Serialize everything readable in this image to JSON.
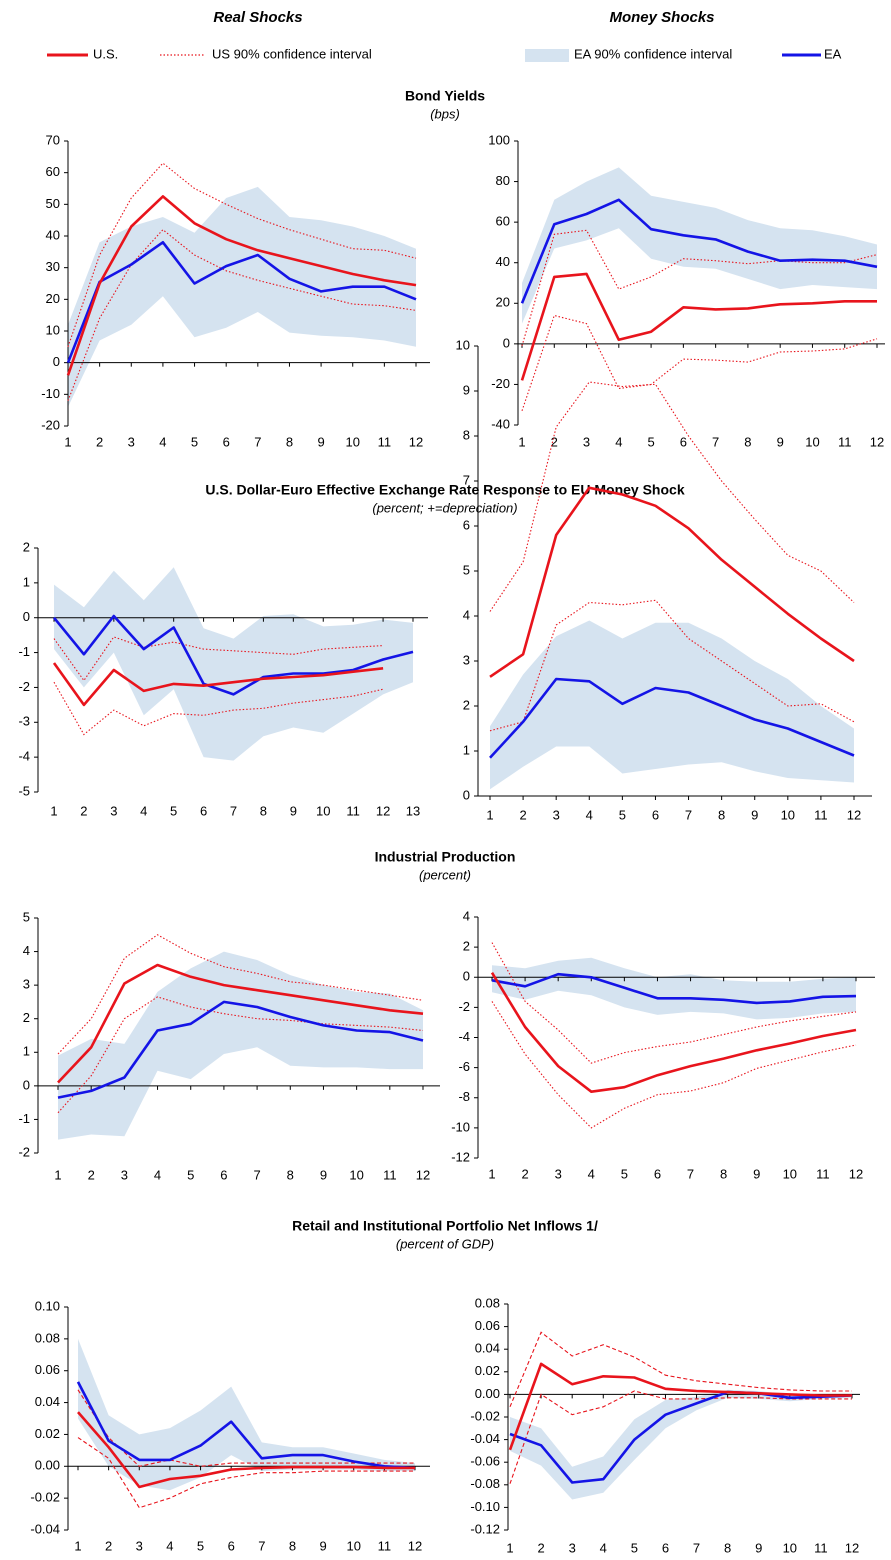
{
  "headers": [
    "Real Shocks",
    "Money Shocks"
  ],
  "legend": [
    {
      "name": "U.S.",
      "color": "#e8141c",
      "style": "solid"
    },
    {
      "name": "US 90% confidence interval",
      "color": "#e8141c",
      "style": "dotted"
    },
    {
      "name": "EA 90% confidence interval",
      "color": "#d5e3f0",
      "style": "band"
    },
    {
      "name": "EA",
      "color": "#1414e6",
      "style": "solid"
    }
  ],
  "sections": [
    {
      "title": "Bond Yields",
      "subtitle": "(bps)"
    },
    {
      "title": "U.S. Dollar-Euro Effective Exchange Rate Response to EU Money Shock",
      "subtitle": "(percent; +=depreciation)"
    },
    {
      "title": "Industrial Production",
      "subtitle": "(percent)"
    },
    {
      "title": "Retail and Institutional Portfolio Net Inflows 1/",
      "subtitle": "(percent of GDP)"
    }
  ],
  "chart_data": [
    {
      "type": "line",
      "categories": [
        1,
        2,
        3,
        4,
        5,
        6,
        7,
        8,
        9,
        10,
        11,
        12
      ],
      "ylim": [
        -20,
        70
      ],
      "yticks": [
        -20,
        -10,
        0,
        10,
        20,
        30,
        40,
        50,
        60,
        70
      ],
      "ci_line": "dotted",
      "us": [
        -4,
        25,
        43,
        52.5,
        44,
        39,
        35.5,
        33,
        30.5,
        28,
        26,
        24.5
      ],
      "us_ci": {
        "upper": [
          5,
          34,
          52,
          63,
          55,
          50,
          45.5,
          42,
          39,
          36,
          35.5,
          33
        ],
        "lower": [
          -12,
          14,
          31,
          42,
          34,
          29,
          26,
          23.5,
          21,
          18.5,
          18,
          16.5
        ]
      },
      "ea": [
        0,
        25.5,
        31,
        38,
        25,
        30.5,
        34,
        26.5,
        22.5,
        24,
        24,
        20
      ],
      "ea_ci": {
        "upper": [
          12,
          38,
          43,
          46,
          41,
          52,
          55.5,
          46,
          45,
          43,
          40,
          36
        ],
        "lower": [
          -14,
          7,
          12,
          21,
          8,
          11,
          16,
          9.5,
          8.5,
          8,
          7,
          5
        ]
      }
    },
    {
      "type": "line",
      "categories": [
        1,
        2,
        3,
        4,
        5,
        6,
        7,
        8,
        9,
        10,
        11,
        12
      ],
      "ylim": [
        -40,
        100
      ],
      "yticks": [
        -40,
        -20,
        0,
        20,
        40,
        60,
        80,
        100
      ],
      "ci_line": "dotted",
      "us": [
        -18,
        33,
        34.5,
        2,
        6,
        18,
        17,
        17.5,
        19.5,
        20,
        21,
        21
      ],
      "us_ci": {
        "upper": [
          -1,
          54,
          56,
          27,
          33,
          42,
          41,
          39.5,
          41,
          40,
          40,
          44
        ],
        "lower": [
          -33,
          14,
          10,
          -22,
          -20,
          -7.5,
          -8,
          -9,
          -4,
          -3.5,
          -2.5,
          2.5
        ]
      },
      "ea": [
        20,
        59,
        64,
        71,
        56.5,
        53.5,
        51.5,
        45.5,
        41,
        41.5,
        41,
        38
      ],
      "ea_ci": {
        "upper": [
          30,
          71,
          80,
          87,
          73,
          70,
          67,
          61,
          57,
          56,
          53,
          49
        ],
        "lower": [
          10,
          47,
          51,
          57,
          42,
          38,
          37,
          32,
          27,
          29,
          28,
          27
        ]
      }
    },
    {
      "type": "line",
      "categories": [
        1,
        2,
        3,
        4,
        5,
        6,
        7,
        8,
        9,
        10,
        11,
        12,
        13
      ],
      "ylim": [
        -5,
        2
      ],
      "yticks": [
        -5,
        -4,
        -3,
        -2,
        -1,
        0,
        1,
        2
      ],
      "ci_line": "dotted",
      "us": [
        -1.3,
        -2.5,
        -1.5,
        -2.1,
        -1.9,
        -1.95,
        -1.85,
        -1.75,
        -1.7,
        -1.65,
        -1.55,
        -1.45,
        null
      ],
      "us_ci": {
        "upper": [
          -0.6,
          -1.8,
          -0.55,
          -0.85,
          -0.7,
          -0.9,
          -0.95,
          -1.0,
          -1.05,
          -0.9,
          -0.85,
          -0.8,
          null
        ],
        "lower": [
          -1.85,
          -3.35,
          -2.65,
          -3.1,
          -2.75,
          -2.8,
          -2.65,
          -2.6,
          -2.45,
          -2.35,
          -2.25,
          -2.05,
          null
        ]
      },
      "ea": [
        0,
        -1.05,
        0.05,
        -0.9,
        -0.28,
        -1.9,
        -2.2,
        -1.7,
        -1.6,
        -1.6,
        -1.5,
        -1.2,
        -0.98
      ],
      "ea_ci": {
        "upper": [
          0.95,
          0.3,
          1.35,
          0.5,
          1.45,
          -0.3,
          -0.6,
          0.05,
          0.1,
          -0.25,
          -0.2,
          -0.05,
          -0.15
        ],
        "lower": [
          -0.9,
          -2.0,
          -1.0,
          -2.8,
          -2.05,
          -4.0,
          -4.1,
          -3.4,
          -3.15,
          -3.3,
          -2.75,
          -2.2,
          -1.85
        ]
      }
    },
    {
      "type": "line",
      "categories": [
        1,
        2,
        3,
        4,
        5,
        6,
        7,
        8,
        9,
        10,
        11,
        12
      ],
      "ylim": [
        0,
        10
      ],
      "yticks": [
        0,
        1,
        2,
        3,
        4,
        5,
        6,
        7,
        8,
        9,
        10
      ],
      "ci_line": "dotted",
      "us": [
        2.65,
        3.15,
        5.8,
        6.85,
        6.7,
        6.45,
        5.95,
        5.25,
        4.65,
        4.05,
        3.5,
        3.0
      ],
      "us_ci": {
        "upper": [
          4.1,
          5.2,
          8.2,
          9.2,
          9.1,
          9.15,
          8.0,
          7.0,
          6.15,
          5.35,
          5.0,
          4.3
        ],
        "lower": [
          1.45,
          1.65,
          3.8,
          4.3,
          4.25,
          4.35,
          3.5,
          3.0,
          2.5,
          2.0,
          2.05,
          1.65
        ]
      },
      "ea": [
        0.85,
        1.65,
        2.6,
        2.55,
        2.05,
        2.4,
        2.3,
        2.0,
        1.7,
        1.5,
        1.2,
        0.9
      ],
      "ea_ci": {
        "upper": [
          1.55,
          2.7,
          3.55,
          3.9,
          3.5,
          3.85,
          3.85,
          3.5,
          3.0,
          2.6,
          2.0,
          1.5
        ],
        "lower": [
          0.15,
          0.65,
          1.1,
          1.1,
          0.5,
          0.6,
          0.7,
          0.75,
          0.55,
          0.4,
          0.35,
          0.3
        ]
      }
    },
    {
      "type": "line",
      "categories": [
        1,
        2,
        3,
        4,
        5,
        6,
        7,
        8,
        9,
        10,
        11,
        12
      ],
      "ylim": [
        -2,
        5
      ],
      "yticks": [
        -2,
        -1,
        0,
        1,
        2,
        3,
        4,
        5
      ],
      "ci_line": "dotted",
      "us": [
        0.1,
        1.15,
        3.05,
        3.6,
        3.25,
        3.0,
        2.85,
        2.7,
        2.55,
        2.4,
        2.25,
        2.15
      ],
      "us_ci": {
        "upper": [
          0.95,
          2.0,
          3.8,
          4.5,
          3.95,
          3.55,
          3.35,
          3.1,
          3.0,
          2.85,
          2.7,
          2.55
        ],
        "lower": [
          -0.8,
          0.3,
          2.0,
          2.65,
          2.35,
          2.15,
          2.0,
          1.95,
          1.85,
          1.8,
          1.75,
          1.65
        ]
      },
      "ea": [
        -0.35,
        -0.15,
        0.25,
        1.65,
        1.85,
        2.5,
        2.35,
        2.05,
        1.8,
        1.65,
        1.6,
        1.35
      ],
      "ea_ci": {
        "upper": [
          0.9,
          1.4,
          1.25,
          2.8,
          3.5,
          4.0,
          3.75,
          3.3,
          3.0,
          2.8,
          2.75,
          2.25
        ],
        "lower": [
          -1.6,
          -1.45,
          -1.5,
          0.45,
          0.2,
          0.95,
          1.15,
          0.6,
          0.55,
          0.55,
          0.5,
          0.5
        ]
      }
    },
    {
      "type": "line",
      "categories": [
        1,
        2,
        3,
        4,
        5,
        6,
        7,
        8,
        9,
        10,
        11,
        12
      ],
      "ylim": [
        -12,
        4
      ],
      "yticks": [
        -12,
        -10,
        -8,
        -6,
        -4,
        -2,
        0,
        2,
        4
      ],
      "ci_line": "dotted",
      "us": [
        0.3,
        -3.3,
        -5.9,
        -7.6,
        -7.3,
        -6.5,
        -5.9,
        -5.4,
        -4.85,
        -4.4,
        -3.9,
        -3.5
      ],
      "us_ci": {
        "upper": [
          2.3,
          -1.6,
          -3.5,
          -5.7,
          -5.0,
          -4.6,
          -4.3,
          -3.8,
          -3.3,
          -2.9,
          -2.6,
          -2.3
        ],
        "lower": [
          -1.6,
          -5.1,
          -7.8,
          -10.0,
          -8.7,
          -7.8,
          -7.55,
          -7.0,
          -6.05,
          -5.5,
          -4.95,
          -4.5
        ]
      },
      "ea": [
        -0.2,
        -0.6,
        0.2,
        0.0,
        -0.7,
        -1.4,
        -1.4,
        -1.5,
        -1.7,
        -1.6,
        -1.3,
        -1.25
      ],
      "ea_ci": {
        "upper": [
          0.8,
          0.6,
          1.1,
          1.3,
          0.6,
          0.0,
          0.2,
          -0.2,
          -0.3,
          -0.3,
          -0.1,
          0.0
        ],
        "lower": [
          -1.0,
          -1.5,
          -0.9,
          -1.2,
          -2.0,
          -2.5,
          -2.3,
          -2.4,
          -2.8,
          -2.7,
          -2.4,
          -2.3
        ]
      }
    },
    {
      "type": "line",
      "categories": [
        1,
        2,
        3,
        4,
        5,
        6,
        7,
        8,
        9,
        10,
        11,
        12
      ],
      "ylim": [
        -0.04,
        0.1
      ],
      "yticks": [
        -0.04,
        -0.02,
        {
          "value": 0,
          "label": "0.00"
        },
        0.02,
        0.04,
        0.06,
        0.08,
        {
          "value": 0.1,
          "label": "0.10"
        }
      ],
      "ci_line": "dashed",
      "us": [
        0.034,
        0.012,
        -0.013,
        -0.008,
        -0.006,
        -0.002,
        -0.001,
        -0.0005,
        -0.0005,
        -0.0005,
        -0.001,
        -0.001
      ],
      "us_ci": {
        "upper": [
          0.048,
          0.018,
          0.0,
          0.004,
          0.0,
          0.002,
          0.002,
          0.002,
          0.002,
          0.002,
          0.002,
          0.002
        ],
        "lower": [
          0.018,
          0.005,
          -0.026,
          -0.02,
          -0.011,
          -0.007,
          -0.004,
          -0.004,
          -0.003,
          -0.003,
          -0.003,
          -0.003
        ]
      },
      "ea": [
        0.053,
        0.016,
        0.004,
        0.004,
        0.013,
        0.028,
        0.005,
        0.007,
        0.007,
        0.003,
        0.0,
        -0.001
      ],
      "ea_ci": {
        "upper": [
          0.08,
          0.032,
          0.02,
          0.024,
          0.035,
          0.05,
          0.015,
          0.012,
          0.012,
          0.008,
          0.004,
          0.002
        ],
        "lower": [
          0.03,
          0.0,
          -0.012,
          -0.015,
          -0.007,
          0.007,
          -0.003,
          -0.002,
          -0.002,
          -0.002,
          -0.003,
          -0.003
        ]
      }
    },
    {
      "type": "line",
      "categories": [
        1,
        2,
        3,
        4,
        5,
        6,
        7,
        8,
        9,
        10,
        11,
        12
      ],
      "ylim": [
        -0.12,
        0.08
      ],
      "yticks": [
        -0.12,
        {
          "value": -0.1,
          "label": "-0.10"
        },
        -0.08,
        -0.06,
        -0.04,
        -0.02,
        {
          "value": 0,
          "label": "0.00"
        },
        0.02,
        0.04,
        0.06,
        0.08
      ],
      "ci_line": "dashed",
      "us": [
        -0.049,
        0.027,
        0.009,
        0.016,
        0.015,
        0.005,
        0.003,
        0.002,
        0.001,
        0.0,
        -0.001,
        -0.001
      ],
      "us_ci": {
        "upper": [
          -0.011,
          0.055,
          0.034,
          0.044,
          0.033,
          0.017,
          0.012,
          0.009,
          0.006,
          0.004,
          0.003,
          0.003
        ],
        "lower": [
          -0.079,
          0.0,
          -0.018,
          -0.011,
          0.003,
          -0.004,
          -0.004,
          -0.003,
          -0.003,
          -0.004,
          -0.004,
          -0.004
        ]
      },
      "ea": [
        -0.035,
        -0.045,
        -0.078,
        -0.075,
        -0.04,
        -0.018,
        -0.008,
        0.002,
        0.001,
        -0.003,
        -0.002,
        -0.001
      ],
      "ea_ci": {
        "upper": [
          -0.02,
          -0.03,
          -0.064,
          -0.055,
          -0.022,
          -0.005,
          -0.002,
          0.004,
          0.003,
          0.0,
          0.0,
          0.0
        ],
        "lower": [
          -0.05,
          -0.063,
          -0.093,
          -0.087,
          -0.058,
          -0.03,
          -0.014,
          -0.003,
          -0.004,
          -0.006,
          -0.004,
          -0.003
        ]
      }
    }
  ]
}
